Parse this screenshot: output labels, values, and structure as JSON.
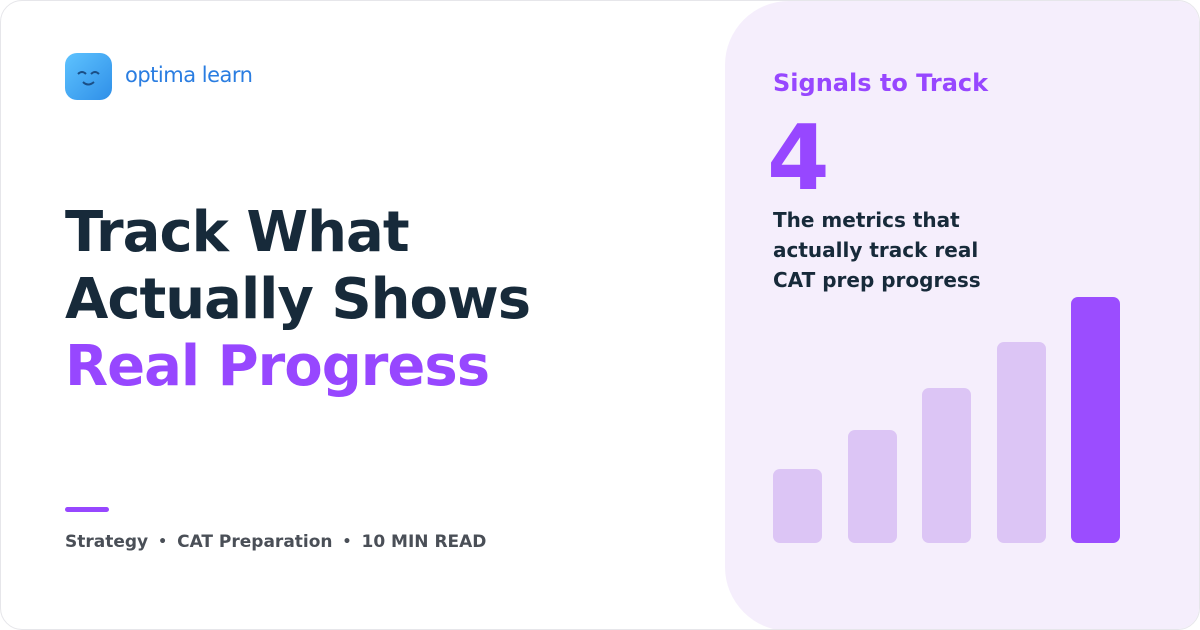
{
  "brand": {
    "name": "optima learn"
  },
  "headline": {
    "lines": [
      "Track What",
      "Actually Shows"
    ],
    "highlight": "Real Progress"
  },
  "meta": [
    "Strategy",
    "CAT Preparation",
    "10 MIN READ"
  ],
  "panel": {
    "label": "Signals to Track",
    "number": "4",
    "description": [
      "The metrics that",
      "actually track real",
      "CAT prep progress"
    ]
  }
}
